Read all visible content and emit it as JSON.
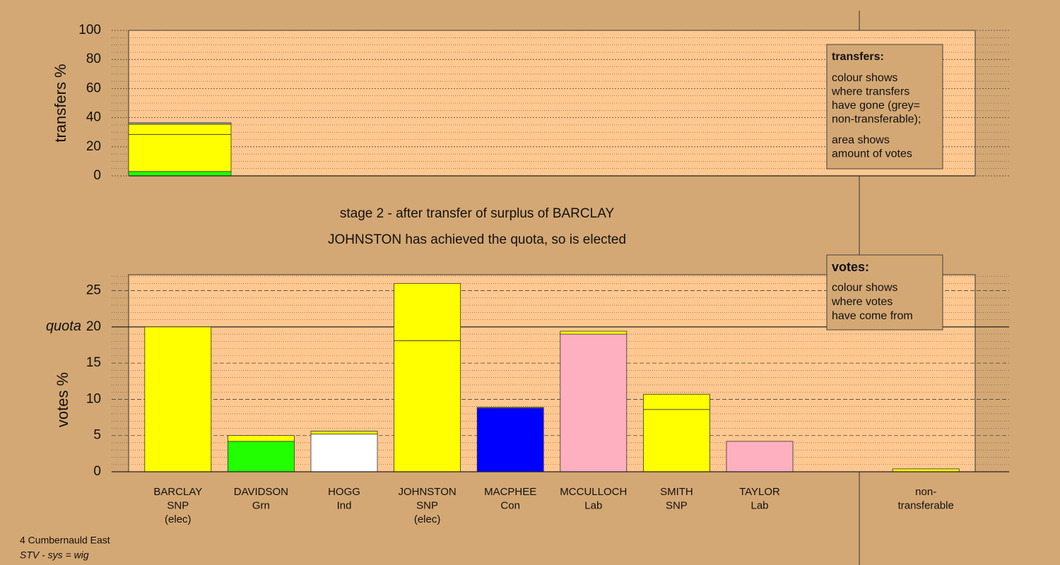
{
  "chart_data": [
    {
      "type": "bar",
      "ylabel": "transfers %",
      "ylim": [
        0,
        100
      ],
      "yticks": [
        0,
        20,
        40,
        60,
        80,
        100
      ],
      "series": [
        {
          "color": "#22ff00",
          "values": [
            3
          ]
        },
        {
          "color": "#ffff00",
          "values": [
            25.5
          ]
        },
        {
          "color": "#ffff00",
          "values": [
            7
          ]
        },
        {
          "color": "#aaaaaa",
          "values": [
            1
          ]
        }
      ],
      "annotation": {
        "title": "transfers:",
        "paragraphs": [
          [
            "colour shows",
            "where transfers",
            "have gone (grey=",
            "non-transferable);"
          ],
          [
            "area shows",
            "amount of votes"
          ]
        ]
      }
    },
    {
      "type": "bar",
      "title": "stage 2 - after transfer of surplus of BARCLAY",
      "subtitle": "JOHNSTON has achieved the quota, so is elected",
      "ylabel": "votes %",
      "ylim": [
        0,
        27.2
      ],
      "yticks": [
        0,
        5,
        10,
        15,
        20,
        25
      ],
      "quota": {
        "value": 20,
        "label": "quota"
      },
      "categories": [
        [
          "BARCLAY",
          "SNP",
          "(elec)"
        ],
        [
          "DAVIDSON",
          "Grn"
        ],
        [
          "HOGG",
          "Ind"
        ],
        [
          "JOHNSTON",
          "SNP",
          "(elec)"
        ],
        [
          "MACPHEE",
          "Con"
        ],
        [
          "MCCULLOCH",
          "Lab"
        ],
        [
          "SMITH",
          "SNP"
        ],
        [
          "TAYLOR",
          "Lab"
        ],
        null,
        [
          "non-",
          "transferable"
        ]
      ],
      "series": [
        {
          "colors": [
            "#ffff00",
            "#22ff00",
            "#ffffff",
            "#ffff00",
            "#0000ff",
            "#ffb0c0",
            "#ffff00",
            "#ffb0c0",
            "#aaaaaa",
            "#aaaaaa"
          ],
          "values": [
            20,
            4.2,
            5.2,
            18.1,
            8.8,
            19.0,
            8.6,
            4.2,
            0,
            0
          ]
        },
        {
          "color": "#ffff00",
          "values": [
            0,
            0.8,
            0.4,
            7.9,
            0.1,
            0.4,
            2.1,
            0,
            0,
            0.4
          ]
        }
      ],
      "annotation": {
        "title": "votes:",
        "paragraphs": [
          [
            "colour shows",
            "where votes",
            "have come from"
          ]
        ]
      }
    }
  ],
  "footer": [
    "4 Cumbernauld East",
    "STV - sys = wig"
  ]
}
